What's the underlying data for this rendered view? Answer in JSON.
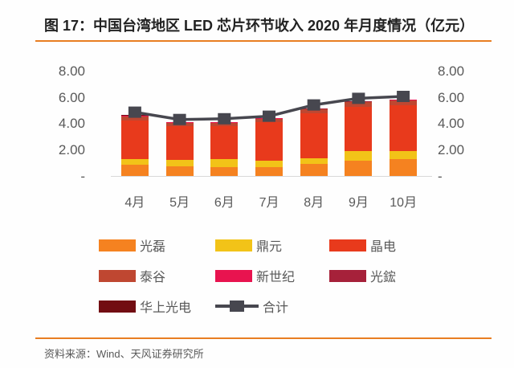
{
  "title": "图 17：中国台湾地区 LED 芯片环节收入 2020 年月度情况（亿元）",
  "source": "资料来源：Wind、天风证券研究所",
  "colors": {
    "accent_rule": "#E87E22",
    "axis_text": "#595959",
    "title_text": "#222222",
    "total_line": "#47474F"
  },
  "chart_data": {
    "type": "bar",
    "subtype": "stacked-bar-with-total-line",
    "categories": [
      "4月",
      "5月",
      "6月",
      "7月",
      "8月",
      "9月",
      "10月"
    ],
    "series": [
      {
        "name": "光磊",
        "type": "bar",
        "color": "#F58220",
        "values": [
          0.9,
          0.8,
          0.75,
          0.75,
          0.95,
          1.25,
          1.35
        ]
      },
      {
        "name": "鼎元",
        "type": "bar",
        "color": "#F2C318",
        "values": [
          0.45,
          0.5,
          0.6,
          0.5,
          0.45,
          0.7,
          0.6
        ]
      },
      {
        "name": "晶电",
        "type": "bar",
        "color": "#E83A1C",
        "values": [
          2.95,
          2.55,
          2.5,
          2.9,
          3.4,
          3.35,
          3.5
        ]
      },
      {
        "name": "泰谷",
        "type": "bar",
        "color": "#BF4731",
        "values": [
          0.3,
          0.25,
          0.25,
          0.25,
          0.3,
          0.35,
          0.35
        ]
      },
      {
        "name": "新世纪",
        "type": "bar",
        "color": "#E8134F",
        "values": [
          0.03,
          0.03,
          0.03,
          0.03,
          0.03,
          0.03,
          0.03
        ]
      },
      {
        "name": "光鋐",
        "type": "bar",
        "color": "#A6213A",
        "values": [
          0.03,
          0.03,
          0.03,
          0.03,
          0.03,
          0.03,
          0.03
        ]
      },
      {
        "name": "华上光电",
        "type": "bar",
        "color": "#720D12",
        "values": [
          0.02,
          0.02,
          0.02,
          0.02,
          0.02,
          0.02,
          0.02
        ]
      },
      {
        "name": "合计",
        "type": "line",
        "color": "#47474F",
        "values": [
          4.9,
          4.35,
          4.4,
          4.6,
          5.45,
          5.95,
          6.1
        ]
      }
    ],
    "ylabel": "亿元",
    "ylim": [
      0,
      8
    ],
    "dual_axis": true,
    "grid": false,
    "y_ticks": [
      {
        "v": 8,
        "label": "8.00"
      },
      {
        "v": 6,
        "label": "6.00"
      },
      {
        "v": 4,
        "label": "4.00"
      },
      {
        "v": 2,
        "label": "2.00"
      },
      {
        "v": 0,
        "label": "-"
      }
    ],
    "legend_position": "bottom"
  },
  "legend": {
    "rows": [
      [
        {
          "series": "光磊"
        },
        {
          "series": "鼎元"
        },
        {
          "series": "晶电"
        }
      ],
      [
        {
          "series": "泰谷"
        },
        {
          "series": "新世纪"
        },
        {
          "series": "光鋐"
        }
      ],
      [
        {
          "series": "华上光电"
        },
        {
          "series": "合计",
          "type": "line"
        }
      ]
    ]
  }
}
